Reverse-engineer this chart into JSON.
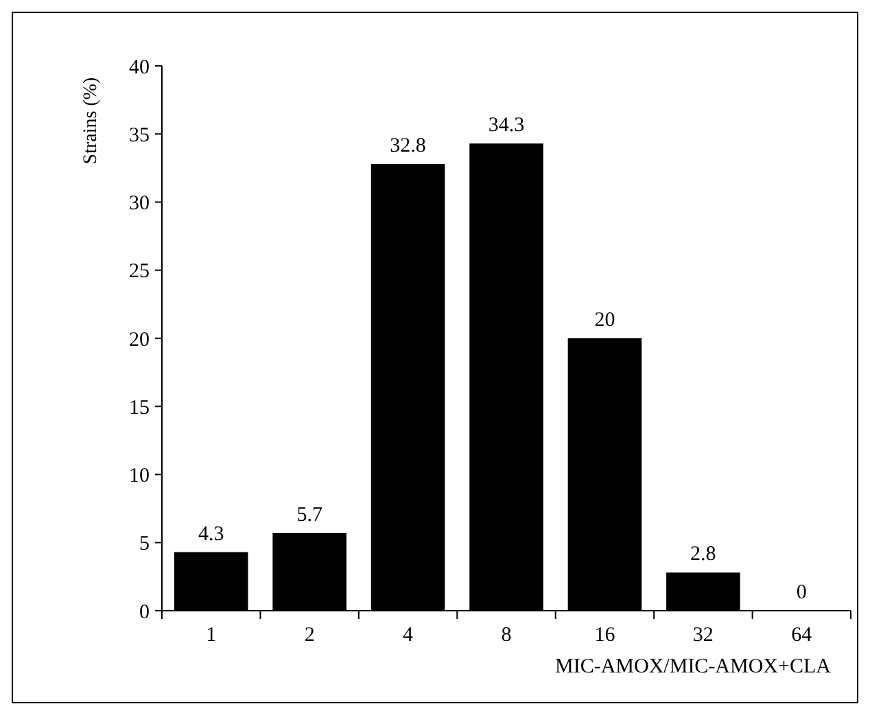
{
  "chart_data": {
    "type": "bar",
    "xlabel": "MIC-AMOX/MIC-AMOX+CLA",
    "ylabel": "Strains (%)",
    "categories": [
      "1",
      "2",
      "4",
      "8",
      "16",
      "32",
      "64"
    ],
    "values": [
      4.3,
      5.7,
      32.8,
      34.3,
      20,
      2.8,
      0
    ],
    "color": "#000000",
    "ylim": [
      0,
      40
    ],
    "yticks": [
      0,
      5,
      10,
      15,
      20,
      25,
      30,
      35,
      40
    ],
    "data_labels": true
  }
}
